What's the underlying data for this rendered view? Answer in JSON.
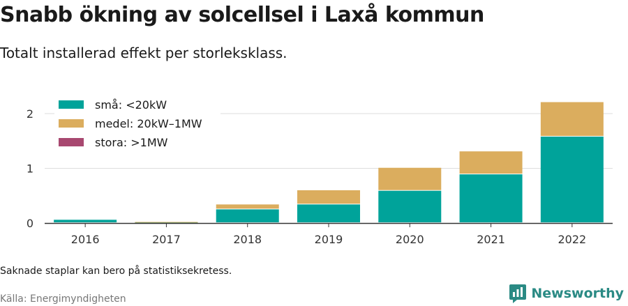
{
  "header": {
    "title": "Snabb ökning av solcellsel i Laxå kommun",
    "subtitle": "Totalt installerad effekt per storleksklass."
  },
  "footer": {
    "note": "Saknade staplar kan bero på statistiksekretess.",
    "source": "Källa: Energimyndigheten",
    "brand": "Newsworthy"
  },
  "colors": {
    "small": "#00a39a",
    "medium": "#dbad5e",
    "large": "#a84870",
    "grid": "#dddddd",
    "axis": "#333333",
    "brand": "#2a8a84"
  },
  "chart_data": {
    "type": "bar",
    "stacked": true,
    "categories": [
      "2016",
      "2017",
      "2018",
      "2019",
      "2020",
      "2021",
      "2022"
    ],
    "series": [
      {
        "name": "små: <20kW",
        "color": "#00a39a",
        "values": [
          0.06,
          0.01,
          0.25,
          0.34,
          0.59,
          0.89,
          1.58
        ]
      },
      {
        "name": "medel: 20kW–1MW",
        "color": "#dbad5e",
        "values": [
          0.0,
          0.01,
          0.09,
          0.26,
          0.42,
          0.42,
          0.63
        ]
      },
      {
        "name": "stora: >1MW",
        "color": "#a84870",
        "values": [
          0,
          0,
          0,
          0,
          0,
          0,
          0
        ]
      }
    ],
    "yticks": [
      0,
      1,
      2
    ],
    "ylim": [
      0,
      2.4
    ],
    "grid": true,
    "legend_position": "top-left"
  }
}
